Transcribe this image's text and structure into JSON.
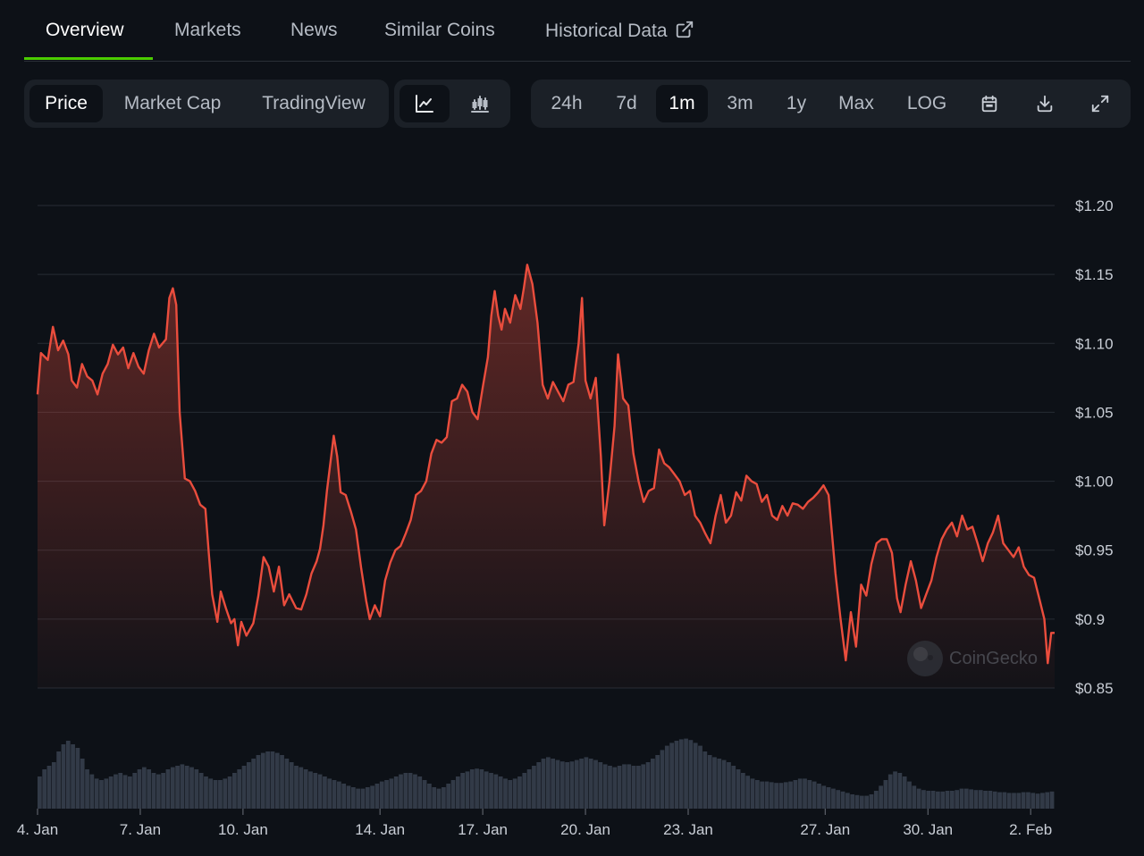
{
  "tabs": [
    {
      "label": "Overview"
    },
    {
      "label": "Markets"
    },
    {
      "label": "News"
    },
    {
      "label": "Similar Coins"
    },
    {
      "label": "Historical Data"
    }
  ],
  "data_type": [
    "Price",
    "Market Cap",
    "TradingView"
  ],
  "chart_style": {
    "line_icon": "line-chart-icon",
    "candle_icon": "candlestick-chart-icon"
  },
  "ranges": [
    "24h",
    "7d",
    "1m",
    "3m",
    "1y",
    "Max",
    "LOG"
  ],
  "range_icons": [
    "calendar-icon",
    "download-icon",
    "expand-icon"
  ],
  "selected": {
    "tab": "Overview",
    "data_type": "Price",
    "chart_style": "line",
    "range": "1m"
  },
  "colors": {
    "line": "#ea4d3d",
    "accent_underline": "#4bcc00",
    "background": "#0d1117",
    "volume": "#3a4250"
  },
  "watermark": "CoinGecko",
  "chart_data": {
    "type": "line",
    "y_ticks": [
      "$1.20",
      "$1.15",
      "$1.10",
      "$1.05",
      "$1.00",
      "$0.95",
      "$0.9",
      "$0.85"
    ],
    "ylim": [
      0.85,
      1.2
    ],
    "x_ticks": [
      "4. Jan",
      "7. Jan",
      "10. Jan",
      "14. Jan",
      "17. Jan",
      "20. Jan",
      "23. Jan",
      "27. Jan",
      "30. Jan",
      "2. Feb"
    ],
    "x_tick_days": [
      4,
      7,
      10,
      14,
      17,
      20,
      23,
      27,
      30,
      33
    ],
    "xlim": [
      4,
      33.7
    ],
    "series": [
      {
        "price": [
          [
            4.0,
            1.063
          ],
          [
            4.1,
            1.093
          ],
          [
            4.3,
            1.088
          ],
          [
            4.45,
            1.112
          ],
          [
            4.6,
            1.095
          ],
          [
            4.75,
            1.102
          ],
          [
            4.9,
            1.092
          ],
          [
            5.0,
            1.073
          ],
          [
            5.15,
            1.068
          ],
          [
            5.3,
            1.085
          ],
          [
            5.45,
            1.076
          ],
          [
            5.6,
            1.073
          ],
          [
            5.75,
            1.063
          ],
          [
            5.9,
            1.078
          ],
          [
            6.05,
            1.085
          ],
          [
            6.2,
            1.099
          ],
          [
            6.35,
            1.092
          ],
          [
            6.5,
            1.097
          ],
          [
            6.65,
            1.082
          ],
          [
            6.8,
            1.093
          ],
          [
            6.95,
            1.083
          ],
          [
            7.1,
            1.078
          ],
          [
            7.25,
            1.095
          ],
          [
            7.4,
            1.107
          ],
          [
            7.55,
            1.097
          ],
          [
            7.75,
            1.103
          ],
          [
            7.85,
            1.133
          ],
          [
            7.95,
            1.14
          ],
          [
            8.05,
            1.128
          ],
          [
            8.15,
            1.05
          ],
          [
            8.3,
            1.002
          ],
          [
            8.45,
            1.0
          ],
          [
            8.6,
            0.993
          ],
          [
            8.75,
            0.983
          ],
          [
            8.9,
            0.98
          ],
          [
            9.0,
            0.948
          ],
          [
            9.1,
            0.918
          ],
          [
            9.25,
            0.898
          ],
          [
            9.35,
            0.92
          ],
          [
            9.5,
            0.908
          ],
          [
            9.65,
            0.897
          ],
          [
            9.75,
            0.9
          ],
          [
            9.85,
            0.881
          ],
          [
            9.95,
            0.898
          ],
          [
            10.1,
            0.888
          ],
          [
            10.3,
            0.897
          ],
          [
            10.45,
            0.917
          ],
          [
            10.6,
            0.945
          ],
          [
            10.75,
            0.938
          ],
          [
            10.9,
            0.92
          ],
          [
            11.05,
            0.938
          ],
          [
            11.2,
            0.91
          ],
          [
            11.35,
            0.918
          ],
          [
            11.55,
            0.908
          ],
          [
            11.7,
            0.907
          ],
          [
            11.85,
            0.918
          ],
          [
            12.0,
            0.933
          ],
          [
            12.15,
            0.942
          ],
          [
            12.25,
            0.951
          ],
          [
            12.35,
            0.968
          ],
          [
            12.45,
            0.993
          ],
          [
            12.55,
            1.013
          ],
          [
            12.65,
            1.033
          ],
          [
            12.75,
            1.018
          ],
          [
            12.85,
            0.992
          ],
          [
            13.0,
            0.99
          ],
          [
            13.15,
            0.978
          ],
          [
            13.3,
            0.965
          ],
          [
            13.45,
            0.937
          ],
          [
            13.6,
            0.913
          ],
          [
            13.7,
            0.9
          ],
          [
            13.85,
            0.91
          ],
          [
            14.0,
            0.902
          ],
          [
            14.15,
            0.928
          ],
          [
            14.3,
            0.941
          ],
          [
            14.45,
            0.95
          ],
          [
            14.6,
            0.953
          ],
          [
            14.75,
            0.962
          ],
          [
            14.9,
            0.972
          ],
          [
            15.05,
            0.99
          ],
          [
            15.2,
            0.993
          ],
          [
            15.35,
            1.0
          ],
          [
            15.5,
            1.02
          ],
          [
            15.65,
            1.03
          ],
          [
            15.8,
            1.028
          ],
          [
            15.95,
            1.032
          ],
          [
            16.1,
            1.058
          ],
          [
            16.25,
            1.06
          ],
          [
            16.4,
            1.07
          ],
          [
            16.55,
            1.065
          ],
          [
            16.7,
            1.05
          ],
          [
            16.85,
            1.045
          ],
          [
            17.0,
            1.068
          ],
          [
            17.15,
            1.09
          ],
          [
            17.25,
            1.12
          ],
          [
            17.35,
            1.138
          ],
          [
            17.45,
            1.12
          ],
          [
            17.55,
            1.11
          ],
          [
            17.65,
            1.125
          ],
          [
            17.8,
            1.115
          ],
          [
            17.95,
            1.135
          ],
          [
            18.1,
            1.125
          ],
          [
            18.2,
            1.14
          ],
          [
            18.3,
            1.157
          ],
          [
            18.45,
            1.143
          ],
          [
            18.6,
            1.115
          ],
          [
            18.75,
            1.07
          ],
          [
            18.9,
            1.06
          ],
          [
            19.05,
            1.072
          ],
          [
            19.2,
            1.065
          ],
          [
            19.35,
            1.058
          ],
          [
            19.5,
            1.07
          ],
          [
            19.65,
            1.072
          ],
          [
            19.8,
            1.1
          ],
          [
            19.9,
            1.133
          ],
          [
            20.0,
            1.073
          ],
          [
            20.15,
            1.06
          ],
          [
            20.3,
            1.075
          ],
          [
            20.45,
            1.018
          ],
          [
            20.55,
            0.968
          ],
          [
            20.7,
            1.0
          ],
          [
            20.85,
            1.04
          ],
          [
            20.95,
            1.092
          ],
          [
            21.1,
            1.06
          ],
          [
            21.25,
            1.055
          ],
          [
            21.4,
            1.02
          ],
          [
            21.55,
            1.0
          ],
          [
            21.7,
            0.985
          ],
          [
            21.85,
            0.993
          ],
          [
            22.0,
            0.995
          ],
          [
            22.15,
            1.023
          ],
          [
            22.3,
            1.013
          ],
          [
            22.45,
            1.01
          ],
          [
            22.6,
            1.005
          ],
          [
            22.75,
            1.0
          ],
          [
            22.9,
            0.99
          ],
          [
            23.05,
            0.993
          ],
          [
            23.2,
            0.975
          ],
          [
            23.35,
            0.97
          ],
          [
            23.5,
            0.962
          ],
          [
            23.65,
            0.955
          ],
          [
            23.8,
            0.975
          ],
          [
            23.95,
            0.99
          ],
          [
            24.1,
            0.97
          ],
          [
            24.25,
            0.975
          ],
          [
            24.4,
            0.992
          ],
          [
            24.55,
            0.986
          ],
          [
            24.7,
            1.004
          ],
          [
            24.85,
            1.0
          ],
          [
            25.0,
            0.998
          ],
          [
            25.15,
            0.985
          ],
          [
            25.3,
            0.99
          ],
          [
            25.45,
            0.975
          ],
          [
            25.6,
            0.972
          ],
          [
            25.75,
            0.982
          ],
          [
            25.9,
            0.975
          ],
          [
            26.05,
            0.984
          ],
          [
            26.2,
            0.983
          ],
          [
            26.35,
            0.98
          ],
          [
            26.5,
            0.985
          ],
          [
            26.65,
            0.988
          ],
          [
            26.8,
            0.992
          ],
          [
            26.95,
            0.997
          ],
          [
            27.1,
            0.99
          ],
          [
            27.3,
            0.933
          ],
          [
            27.45,
            0.9
          ],
          [
            27.6,
            0.87
          ],
          [
            27.75,
            0.905
          ],
          [
            27.9,
            0.88
          ],
          [
            28.05,
            0.925
          ],
          [
            28.2,
            0.917
          ],
          [
            28.35,
            0.94
          ],
          [
            28.5,
            0.955
          ],
          [
            28.65,
            0.958
          ],
          [
            28.8,
            0.958
          ],
          [
            28.95,
            0.948
          ],
          [
            29.1,
            0.915
          ],
          [
            29.2,
            0.905
          ],
          [
            29.35,
            0.925
          ],
          [
            29.5,
            0.942
          ],
          [
            29.65,
            0.928
          ],
          [
            29.8,
            0.908
          ],
          [
            29.95,
            0.918
          ],
          [
            30.1,
            0.928
          ],
          [
            30.25,
            0.945
          ],
          [
            30.4,
            0.958
          ],
          [
            30.55,
            0.965
          ],
          [
            30.7,
            0.97
          ],
          [
            30.85,
            0.96
          ],
          [
            31.0,
            0.975
          ],
          [
            31.15,
            0.965
          ],
          [
            31.3,
            0.967
          ],
          [
            31.45,
            0.955
          ],
          [
            31.6,
            0.942
          ],
          [
            31.75,
            0.955
          ],
          [
            31.9,
            0.963
          ],
          [
            32.05,
            0.975
          ],
          [
            32.2,
            0.955
          ],
          [
            32.35,
            0.95
          ],
          [
            32.5,
            0.945
          ],
          [
            32.65,
            0.952
          ],
          [
            32.8,
            0.938
          ],
          [
            32.95,
            0.932
          ],
          [
            33.1,
            0.93
          ],
          [
            33.25,
            0.915
          ],
          [
            33.4,
            0.9
          ],
          [
            33.5,
            0.868
          ],
          [
            33.6,
            0.89
          ],
          [
            33.7,
            0.89
          ]
        ]
      }
    ],
    "volume_relative": [
      0.45,
      0.55,
      0.6,
      0.65,
      0.8,
      0.9,
      0.95,
      0.9,
      0.85,
      0.7,
      0.55,
      0.48,
      0.42,
      0.4,
      0.42,
      0.45,
      0.48,
      0.5,
      0.47,
      0.45,
      0.5,
      0.55,
      0.58,
      0.55,
      0.5,
      0.48,
      0.5,
      0.55,
      0.58,
      0.6,
      0.62,
      0.6,
      0.58,
      0.55,
      0.5,
      0.45,
      0.42,
      0.4,
      0.4,
      0.42,
      0.45,
      0.5,
      0.55,
      0.6,
      0.65,
      0.7,
      0.75,
      0.78,
      0.8,
      0.8,
      0.78,
      0.75,
      0.7,
      0.65,
      0.6,
      0.58,
      0.55,
      0.52,
      0.5,
      0.48,
      0.45,
      0.42,
      0.4,
      0.38,
      0.35,
      0.32,
      0.3,
      0.28,
      0.28,
      0.3,
      0.32,
      0.35,
      0.38,
      0.4,
      0.42,
      0.45,
      0.48,
      0.5,
      0.5,
      0.48,
      0.45,
      0.4,
      0.35,
      0.3,
      0.28,
      0.3,
      0.35,
      0.4,
      0.45,
      0.5,
      0.52,
      0.55,
      0.56,
      0.55,
      0.52,
      0.5,
      0.48,
      0.45,
      0.42,
      0.4,
      0.42,
      0.45,
      0.5,
      0.55,
      0.6,
      0.65,
      0.7,
      0.72,
      0.7,
      0.68,
      0.66,
      0.65,
      0.66,
      0.68,
      0.7,
      0.72,
      0.7,
      0.68,
      0.65,
      0.62,
      0.6,
      0.58,
      0.6,
      0.62,
      0.62,
      0.6,
      0.6,
      0.62,
      0.65,
      0.7,
      0.75,
      0.82,
      0.88,
      0.92,
      0.95,
      0.97,
      0.98,
      0.96,
      0.92,
      0.88,
      0.8,
      0.75,
      0.72,
      0.7,
      0.68,
      0.65,
      0.6,
      0.55,
      0.5,
      0.46,
      0.42,
      0.4,
      0.38,
      0.38,
      0.37,
      0.36,
      0.36,
      0.37,
      0.38,
      0.4,
      0.42,
      0.42,
      0.4,
      0.38,
      0.35,
      0.32,
      0.3,
      0.28,
      0.26,
      0.24,
      0.22,
      0.2,
      0.19,
      0.18,
      0.18,
      0.2,
      0.25,
      0.32,
      0.4,
      0.48,
      0.52,
      0.5,
      0.45,
      0.38,
      0.32,
      0.28,
      0.26,
      0.25,
      0.25,
      0.24,
      0.24,
      0.25,
      0.25,
      0.26,
      0.28,
      0.28,
      0.27,
      0.26,
      0.26,
      0.25,
      0.25,
      0.24,
      0.23,
      0.23,
      0.22,
      0.22,
      0.22,
      0.23,
      0.23,
      0.22,
      0.21,
      0.22,
      0.23,
      0.24
    ]
  }
}
